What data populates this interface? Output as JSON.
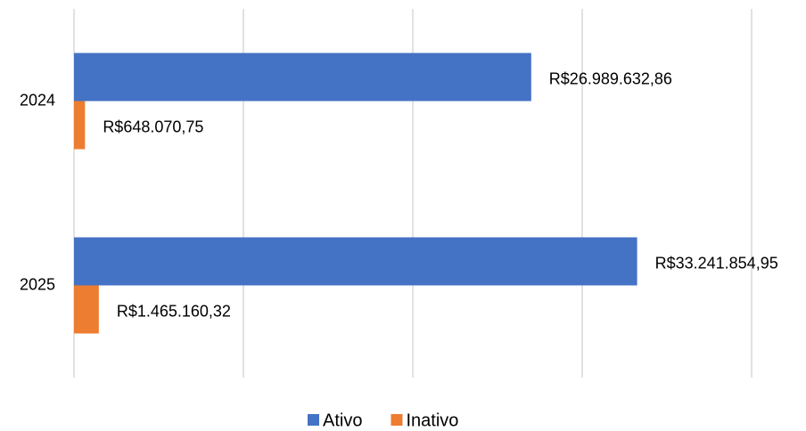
{
  "chart_data": {
    "type": "barh",
    "categories": [
      "2024",
      "2025"
    ],
    "series": [
      {
        "name": "Ativo",
        "color": "#4472c4",
        "values": [
          26989632.86,
          33241854.95
        ],
        "value_labels": [
          "R$26.989.632,86",
          "R$33.241.854,95"
        ]
      },
      {
        "name": "Inativo",
        "color": "#ed7d31",
        "values": [
          648070.75,
          1465160.32
        ],
        "value_labels": [
          "R$648.070,75",
          "R$1.465.160,32"
        ]
      }
    ],
    "xlim": [
      0,
      40000000
    ],
    "xticks": [
      0,
      10000000,
      20000000,
      30000000,
      40000000
    ],
    "grid": true,
    "legend": "bottom"
  }
}
